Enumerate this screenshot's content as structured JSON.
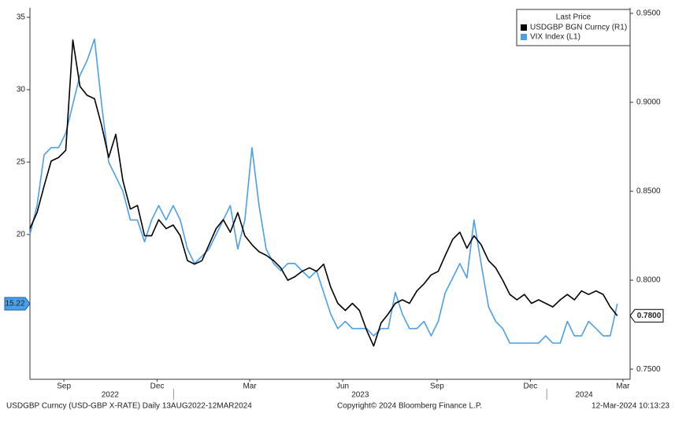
{
  "chart_data": {
    "type": "line",
    "x": [
      2022.615,
      2022.634,
      2022.653,
      2022.672,
      2022.692,
      2022.711,
      2022.73,
      2022.749,
      2022.768,
      2022.788,
      2022.807,
      2022.826,
      2022.845,
      2022.864,
      2022.884,
      2022.903,
      2022.922,
      2022.941,
      2022.96,
      2022.98,
      2022.999,
      2023.018,
      2023.037,
      2023.056,
      2023.076,
      2023.095,
      2023.114,
      2023.133,
      2023.152,
      2023.172,
      2023.191,
      2023.21,
      2023.229,
      2023.248,
      2023.268,
      2023.287,
      2023.306,
      2023.325,
      2023.344,
      2023.364,
      2023.383,
      2023.402,
      2023.421,
      2023.44,
      2023.46,
      2023.479,
      2023.498,
      2023.517,
      2023.536,
      2023.556,
      2023.575,
      2023.594,
      2023.613,
      2023.632,
      2023.652,
      2023.671,
      2023.69,
      2023.709,
      2023.728,
      2023.748,
      2023.767,
      2023.786,
      2023.805,
      2023.824,
      2023.844,
      2023.863,
      2023.882,
      2023.901,
      2023.92,
      2023.94,
      2023.959,
      2023.978,
      2023.997,
      2024.016,
      2024.036,
      2024.055,
      2024.074,
      2024.093,
      2024.112,
      2024.132,
      2024.151,
      2024.17,
      2024.189
    ],
    "xlim": [
      2022.615,
      2024.2
    ],
    "xticks": [
      {
        "value": 2022.706,
        "label": "Sep"
      },
      {
        "value": 2022.956,
        "label": "Dec"
      },
      {
        "value": 2023.204,
        "label": "Mar"
      },
      {
        "value": 2023.453,
        "label": "Jun"
      },
      {
        "value": 2023.706,
        "label": "Sep"
      },
      {
        "value": 2023.956,
        "label": "Dec"
      },
      {
        "value": 2024.204,
        "label": "Mar"
      }
    ],
    "year_ticks": [
      {
        "value": 2022.83,
        "label": "2022"
      },
      {
        "value": 2023.5,
        "label": "2023"
      },
      {
        "value": 2024.1,
        "label": "2024"
      }
    ],
    "year_dividers": [
      2023,
      2024
    ],
    "ylim": [
      10,
      35.65
    ],
    "yticks": [
      20,
      25,
      30,
      35
    ],
    "y2lim": [
      0.7443,
      0.9531
    ],
    "y2ticks": [
      {
        "value": 0.75,
        "label": "0.7500"
      },
      {
        "value": 0.8,
        "label": "0.8000"
      },
      {
        "value": 0.85,
        "label": "0.8500"
      },
      {
        "value": 0.9,
        "label": "0.9000"
      },
      {
        "value": 0.95,
        "label": "0.9500"
      }
    ],
    "legend_title": "Last Price",
    "legend": "top-right",
    "series": [
      {
        "name": "USDGBP BGN Curncy  (R1)",
        "color": "#000000",
        "axis": "y2",
        "last_value_label": "0.7800",
        "values": [
          0.829,
          0.838,
          0.853,
          0.867,
          0.869,
          0.873,
          0.935,
          0.909,
          0.904,
          0.902,
          0.887,
          0.869,
          0.882,
          0.856,
          0.84,
          0.842,
          0.825,
          0.825,
          0.834,
          0.829,
          0.831,
          0.825,
          0.811,
          0.809,
          0.811,
          0.82,
          0.829,
          0.834,
          0.827,
          0.838,
          0.825,
          0.82,
          0.816,
          0.814,
          0.811,
          0.807,
          0.8,
          0.802,
          0.805,
          0.807,
          0.805,
          0.809,
          0.796,
          0.787,
          0.783,
          0.787,
          0.783,
          0.772,
          0.763,
          0.776,
          0.781,
          0.787,
          0.789,
          0.787,
          0.794,
          0.798,
          0.803,
          0.805,
          0.814,
          0.823,
          0.827,
          0.818,
          0.825,
          0.82,
          0.811,
          0.807,
          0.8,
          0.792,
          0.789,
          0.792,
          0.787,
          0.789,
          0.787,
          0.785,
          0.789,
          0.792,
          0.789,
          0.794,
          0.792,
          0.794,
          0.792,
          0.785,
          0.78
        ]
      },
      {
        "name": "VIX Index  (L1)",
        "color": "#4a9fe8",
        "axis": "y",
        "values": [
          20,
          22,
          25.5,
          26,
          26,
          27,
          29,
          31,
          32,
          33.5,
          29,
          25,
          24,
          23,
          21,
          21,
          19.5,
          21,
          22,
          21,
          22,
          21,
          19,
          18,
          18.5,
          19,
          20,
          21,
          22,
          19,
          21,
          26,
          22,
          19,
          18,
          17.5,
          18,
          18,
          17.5,
          17,
          17.5,
          16,
          14.5,
          13.5,
          14,
          13.5,
          13.5,
          13.5,
          13,
          13.5,
          13.5,
          16,
          14.5,
          13.5,
          13.5,
          14,
          13,
          14,
          16,
          17,
          18,
          17,
          21,
          18,
          15,
          14,
          13.5,
          12.5,
          12.5,
          12.5,
          12.5,
          12.5,
          13,
          12.5,
          12.5,
          14,
          13,
          13,
          14,
          13.5,
          13,
          13,
          15.22
        ]
      }
    ],
    "footer_left": "USDGBP Curncy (USD-GBP X-RATE)  Daily 13AUG2022-12MAR2024",
    "footer_center": "Copyright© 2024 Bloomberg Finance L.P.",
    "footer_right": "12-Mar-2024 10:13:23"
  }
}
